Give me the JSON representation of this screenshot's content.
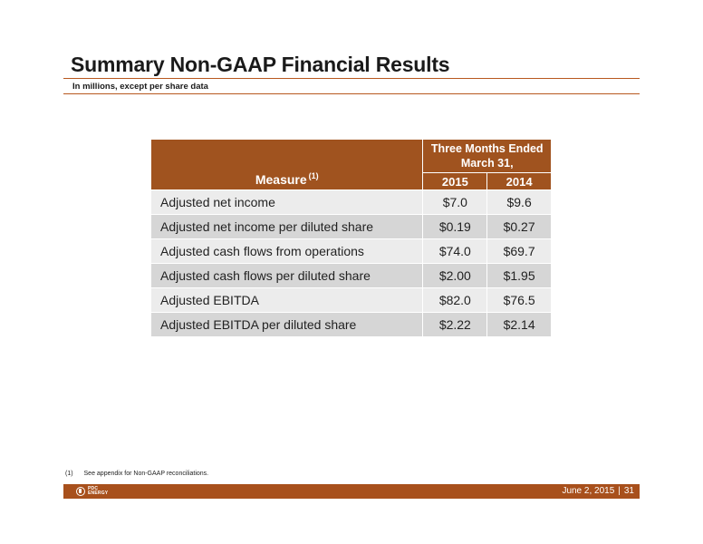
{
  "header": {
    "title": "Summary Non-GAAP Financial Results",
    "subtitle": "In millions, except per share data"
  },
  "table": {
    "measure_header": "Measure",
    "measure_note": "(1)",
    "group_header_line1": "Three Months Ended",
    "group_header_line2": "March 31,",
    "years": [
      "2015",
      "2014"
    ],
    "rows": [
      {
        "label": "Adjusted net income",
        "v2015": "$7.0",
        "v2014": "$9.6"
      },
      {
        "label": "Adjusted net income per diluted share",
        "v2015": "$0.19",
        "v2014": "$0.27"
      },
      {
        "label": "Adjusted cash flows from operations",
        "v2015": "$74.0",
        "v2014": "$69.7"
      },
      {
        "label": "Adjusted cash flows per diluted share",
        "v2015": "$2.00",
        "v2014": "$1.95"
      },
      {
        "label": "Adjusted EBITDA",
        "v2015": "$82.0",
        "v2014": "$76.5"
      },
      {
        "label": "Adjusted EBITDA per diluted share",
        "v2015": "$2.22",
        "v2014": "$2.14"
      }
    ]
  },
  "footnote": {
    "num": "(1)",
    "text": "See appendix for Non-GAAP reconciliations."
  },
  "footer": {
    "logo_line1": "PDC",
    "logo_line2": "ENERGY",
    "date": "June 2, 2015",
    "separator": "|",
    "page": "31"
  },
  "colors": {
    "accent": "#a0531f",
    "row_light": "#ececec",
    "row_dark": "#d6d6d6"
  }
}
